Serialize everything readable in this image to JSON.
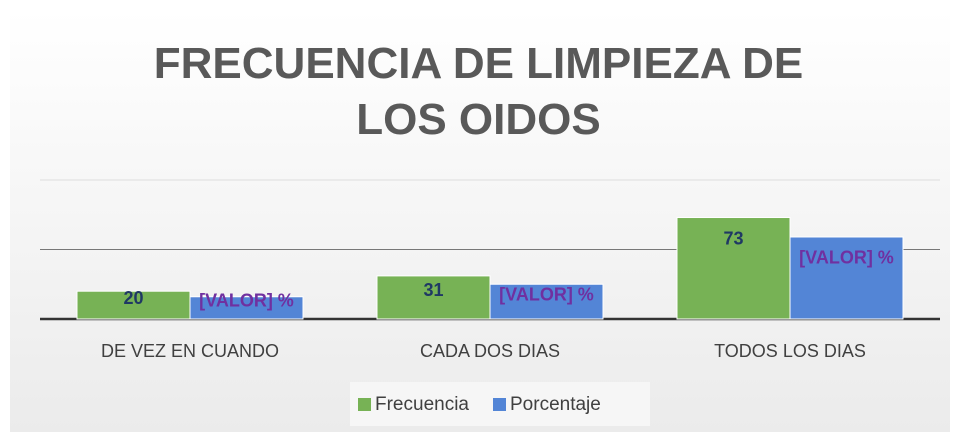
{
  "chart_data": {
    "type": "bar",
    "title": "FRECUENCIA DE LIMPIEZA DE LOS OIDOS",
    "categories": [
      "DE VEZ EN CUANDO",
      "CADA DOS DIAS",
      "TODOS LOS DIAS"
    ],
    "series": [
      {
        "name": "Frecuencia",
        "color": "#77b255",
        "values": [
          20,
          31,
          73
        ]
      },
      {
        "name": "Porcentaje",
        "color": "#5385d6",
        "values": [
          16,
          25,
          59
        ],
        "value_labels": [
          "[VALOR] %",
          "[VALOR] %",
          "[VALOR] %"
        ]
      }
    ],
    "ylim": [
      0,
      100
    ],
    "yticks": [
      0,
      50,
      100
    ],
    "grid": true,
    "legend": "bottom"
  }
}
